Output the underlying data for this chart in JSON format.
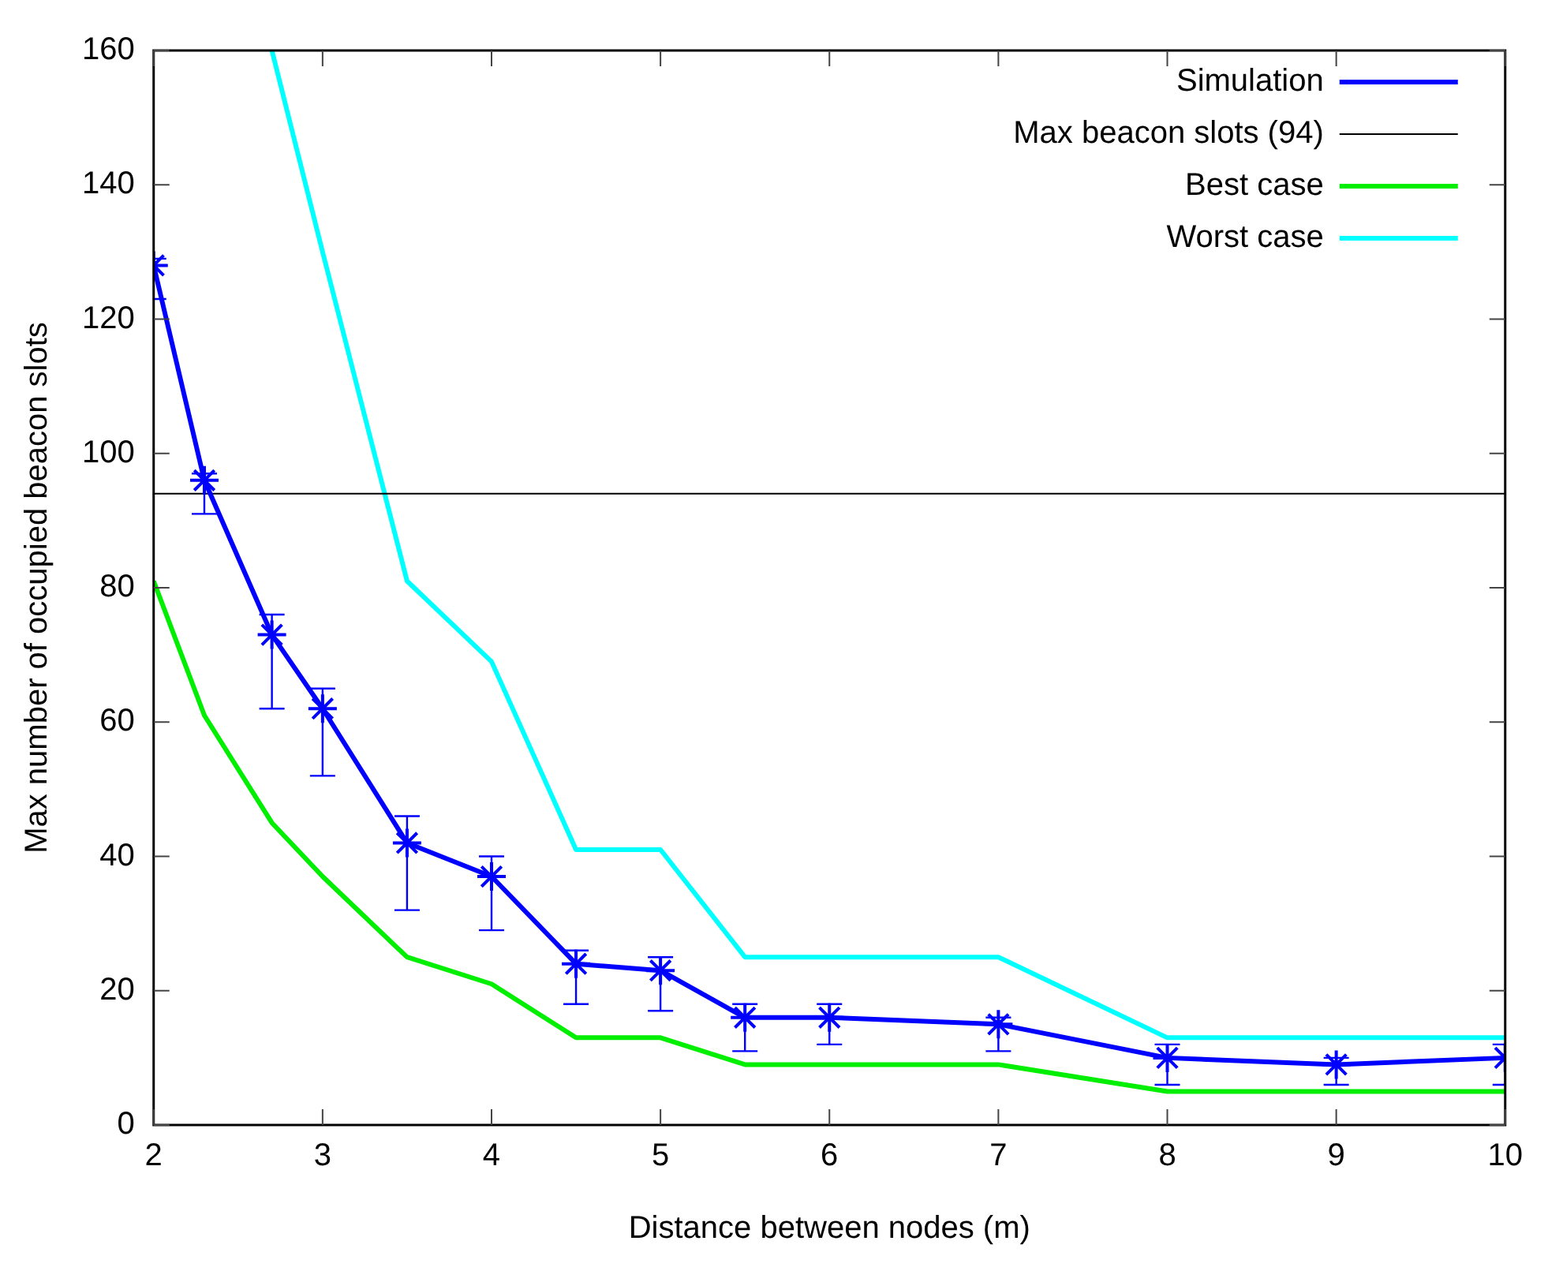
{
  "chart_data": {
    "type": "line",
    "xlabel": "Distance between nodes (m)",
    "ylabel": "Max number of occupied beacon slots",
    "xlim": [
      2,
      10
    ],
    "xticks": [
      2,
      3,
      4,
      5,
      6,
      7,
      8,
      9,
      10
    ],
    "ylim": [
      0,
      160
    ],
    "yticks": [
      0,
      20,
      40,
      60,
      80,
      100,
      120,
      140,
      160
    ],
    "grid": false,
    "legend": "top right",
    "series": [
      {
        "name": "Simulation",
        "color": "#0000ff",
        "marker": "cross",
        "x": [
          2,
          2.3,
          2.7,
          3,
          3.5,
          4,
          4.5,
          5,
          5.5,
          6,
          7,
          8,
          9,
          10
        ],
        "values": [
          128,
          96,
          73,
          62,
          42,
          37,
          24,
          23,
          16,
          16,
          15,
          10,
          9,
          10
        ],
        "errors": [
          [
            123,
            129
          ],
          [
            91,
            97
          ],
          [
            62,
            76
          ],
          [
            52,
            65
          ],
          [
            32,
            46
          ],
          [
            29,
            40
          ],
          [
            18,
            26
          ],
          [
            17,
            25
          ],
          [
            11,
            18
          ],
          [
            12,
            18
          ],
          [
            11,
            16
          ],
          [
            6,
            12
          ],
          [
            6,
            10
          ],
          [
            6,
            12
          ]
        ]
      },
      {
        "name": "Best case",
        "color": "#00ee00",
        "marker": "none",
        "x": [
          2,
          2.3,
          2.7,
          3,
          3.5,
          4,
          4.5,
          5,
          5.5,
          6,
          7,
          8,
          9,
          10
        ],
        "values": [
          81,
          61,
          45,
          37,
          25,
          21,
          13,
          13,
          9,
          9,
          9,
          5,
          5,
          5
        ]
      },
      {
        "name": "Worst case",
        "color": "#00ffff",
        "marker": "none",
        "x": [
          2.7,
          3,
          3.5,
          4,
          4.5,
          5,
          5.5,
          6,
          7,
          8,
          9,
          10
        ],
        "values": [
          160,
          130,
          81,
          69,
          41,
          41,
          25,
          25,
          25,
          13,
          13,
          13
        ]
      }
    ],
    "ref_lines": [
      {
        "axis": "y",
        "value": 94,
        "label": "Max beacon slots (94)",
        "color": "#000000"
      }
    ]
  }
}
